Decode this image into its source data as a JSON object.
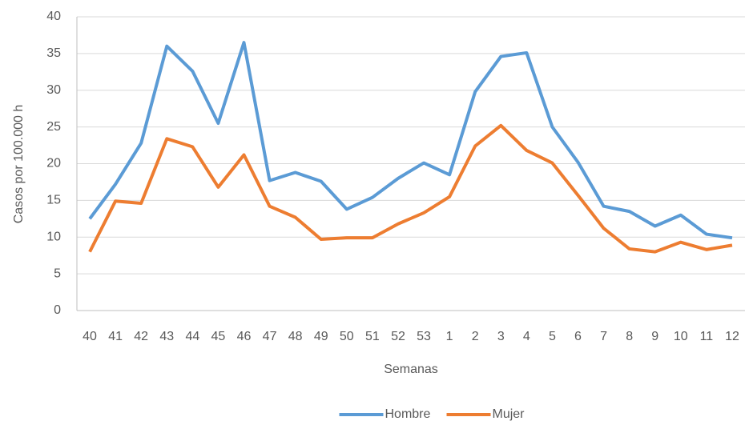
{
  "chart_data": {
    "type": "line",
    "x_label": "Semanas",
    "y_label": "Casos por 100.000 h",
    "categories": [
      "40",
      "41",
      "42",
      "43",
      "44",
      "45",
      "46",
      "47",
      "48",
      "49",
      "50",
      "51",
      "52",
      "53",
      "1",
      "2",
      "3",
      "4",
      "5",
      "6",
      "7",
      "8",
      "9",
      "10",
      "11",
      "12"
    ],
    "series": [
      {
        "name": "Hombre",
        "color": "#5b9bd5",
        "values": [
          12.5,
          17.2,
          22.8,
          36.0,
          32.6,
          25.5,
          36.5,
          17.7,
          18.8,
          17.6,
          13.8,
          15.4,
          18.0,
          20.1,
          18.5,
          29.8,
          34.6,
          35.1,
          25.0,
          20.2,
          14.2,
          13.5,
          11.5,
          13.0,
          10.4,
          9.9
        ]
      },
      {
        "name": "Mujer",
        "color": "#ed7d31",
        "values": [
          8.0,
          14.9,
          14.6,
          23.4,
          22.3,
          16.8,
          21.2,
          14.2,
          12.7,
          9.7,
          9.9,
          9.9,
          11.8,
          13.3,
          15.5,
          22.4,
          25.2,
          21.8,
          20.1,
          15.7,
          11.2,
          8.4,
          8.0,
          9.3,
          8.3,
          8.9
        ]
      }
    ],
    "ylim": [
      0,
      40
    ],
    "yticks": [
      0,
      5,
      10,
      15,
      20,
      25,
      30,
      35,
      40
    ],
    "grid": true,
    "legend": "bottom"
  }
}
